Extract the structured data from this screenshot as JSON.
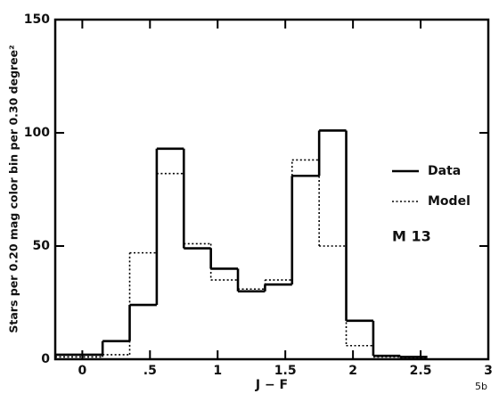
{
  "chart_data": {
    "type": "histogram",
    "xlabel": "J − F",
    "ylabel": "Stars per 0.20 mag color bin per 0.30 degree²",
    "annotation": "M 13",
    "corner_label": "5b",
    "bins": [
      -0.2,
      0.15,
      0.35,
      0.55,
      0.75,
      0.95,
      1.15,
      1.35,
      1.55,
      1.75,
      1.95,
      2.15,
      2.35,
      2.55
    ],
    "series": [
      {
        "name": "Data",
        "color": "#000000",
        "style": "solid",
        "values": [
          2,
          8,
          24,
          93,
          49,
          40,
          30,
          33,
          81,
          101,
          17,
          1.5,
          1
        ]
      },
      {
        "name": "Model",
        "color": "#000000",
        "style": "dotted",
        "values": [
          1,
          2,
          47,
          82,
          51,
          35,
          31,
          35,
          88,
          50,
          6,
          1,
          0.5
        ]
      }
    ],
    "xlim": [
      -0.2,
      3.0
    ],
    "ylim": [
      0,
      150
    ],
    "xticks": [
      0,
      {
        "value": 0.5,
        "label": ".5"
      },
      1,
      1.5,
      2,
      2.5,
      3
    ],
    "yticks": [
      0,
      50,
      100,
      150
    ]
  }
}
